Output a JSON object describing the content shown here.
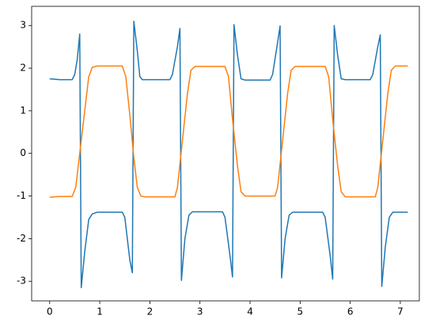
{
  "chart_data": {
    "type": "line",
    "xlim": [
      -0.36,
      7.38
    ],
    "ylim": [
      -3.46,
      3.45
    ],
    "xticks": [
      0,
      1,
      2,
      3,
      4,
      5,
      6,
      7
    ],
    "yticks": [
      -3,
      -2,
      -1,
      0,
      1,
      2,
      3
    ],
    "series": [
      {
        "color": "#1f77b4",
        "x": [
          0,
          0.2,
          0.45,
          0.5,
          0.55,
          0.6,
          0.63,
          0.7,
          0.78,
          0.85,
          0.95,
          1.45,
          1.5,
          1.55,
          1.6,
          1.65,
          1.68,
          1.75,
          1.8,
          1.85,
          2.4,
          2.45,
          2.55,
          2.6,
          2.63,
          2.7,
          2.78,
          2.85,
          3.45,
          3.5,
          3.6,
          3.65,
          3.68,
          3.75,
          3.82,
          3.9,
          4.4,
          4.45,
          4.55,
          4.6,
          4.63,
          4.7,
          4.78,
          4.85,
          5.45,
          5.5,
          5.6,
          5.65,
          5.68,
          5.75,
          5.82,
          5.9,
          6.4,
          6.45,
          6.55,
          6.6,
          6.63,
          6.7,
          6.78,
          6.85,
          7.15
        ],
        "values": [
          1.75,
          1.73,
          1.73,
          1.85,
          2.2,
          2.8,
          -3.15,
          -2.3,
          -1.55,
          -1.42,
          -1.38,
          -1.38,
          -1.5,
          -2.0,
          -2.5,
          -2.8,
          3.1,
          2.4,
          1.8,
          1.73,
          1.73,
          1.85,
          2.5,
          2.93,
          -2.98,
          -2.0,
          -1.45,
          -1.37,
          -1.37,
          -1.5,
          -2.4,
          -2.9,
          3.02,
          2.3,
          1.75,
          1.72,
          1.72,
          1.85,
          2.6,
          2.99,
          -2.92,
          -2.0,
          -1.45,
          -1.38,
          -1.38,
          -1.5,
          -2.4,
          -2.95,
          3.0,
          2.3,
          1.75,
          1.73,
          1.73,
          1.85,
          2.5,
          2.78,
          -3.12,
          -2.2,
          -1.5,
          -1.38,
          -1.38
        ]
      },
      {
        "color": "#ff7f0e",
        "x": [
          0,
          0.2,
          0.45,
          0.52,
          0.6,
          0.7,
          0.78,
          0.85,
          0.95,
          1.45,
          1.52,
          1.6,
          1.68,
          1.75,
          1.82,
          1.9,
          2.5,
          2.55,
          2.65,
          2.75,
          2.82,
          2.9,
          3.5,
          3.57,
          3.65,
          3.75,
          3.82,
          3.9,
          4.5,
          4.55,
          4.65,
          4.75,
          4.82,
          4.9,
          5.5,
          5.57,
          5.65,
          5.75,
          5.82,
          5.9,
          6.5,
          6.55,
          6.65,
          6.75,
          6.82,
          6.9,
          7.15
        ],
        "values": [
          -1.03,
          -1.01,
          -1.01,
          -0.8,
          0.0,
          1.0,
          1.8,
          2.02,
          2.05,
          2.05,
          1.8,
          0.9,
          -0.1,
          -0.8,
          -1.0,
          -1.02,
          -1.02,
          -0.8,
          0.3,
          1.4,
          1.95,
          2.04,
          2.04,
          1.8,
          0.8,
          -0.3,
          -0.9,
          -1.0,
          -1.0,
          -0.8,
          0.3,
          1.4,
          1.95,
          2.04,
          2.04,
          1.8,
          0.8,
          -0.3,
          -0.9,
          -1.02,
          -1.02,
          -0.8,
          0.3,
          1.4,
          1.95,
          2.05,
          2.05
        ]
      }
    ]
  }
}
